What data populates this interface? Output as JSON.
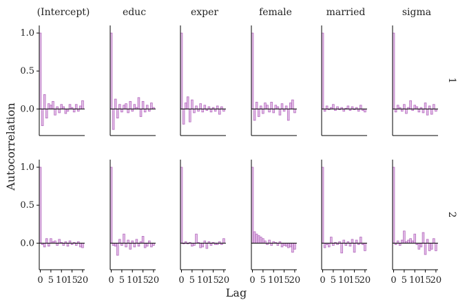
{
  "chart_data": {
    "type": "bar",
    "title": "",
    "xlabel": "Lag",
    "ylabel": "Autocorrelation",
    "xlim": [
      0,
      20
    ],
    "ylim": [
      -0.35,
      1.1
    ],
    "x_ticks": [
      0,
      5,
      10,
      15,
      20
    ],
    "x_tick_labels": [
      "0",
      "5",
      "10",
      "15",
      "20"
    ],
    "y_ticks": [
      1.0,
      0.5,
      0.0
    ],
    "y_tick_labels": [
      "1.0",
      "0.5",
      "0.0"
    ],
    "columns": [
      "(Intercept)",
      "educ",
      "exper",
      "female",
      "married",
      "sigma"
    ],
    "rows": [
      "1",
      "2"
    ],
    "panels": [
      {
        "parameter": "(Intercept)",
        "chain": "1",
        "lags": [
          0,
          1,
          2,
          3,
          4,
          5,
          6,
          7,
          8,
          9,
          10,
          11,
          12,
          13,
          14,
          15,
          16,
          17,
          18,
          19,
          20
        ],
        "values": [
          1.0,
          -0.22,
          0.19,
          -0.12,
          0.07,
          0.05,
          0.1,
          -0.08,
          0.03,
          -0.05,
          0.06,
          0.03,
          -0.06,
          -0.03,
          0.06,
          0.02,
          -0.04,
          0.06,
          -0.03,
          0.04,
          0.11
        ]
      },
      {
        "parameter": "educ",
        "chain": "1",
        "lags": [
          0,
          1,
          2,
          3,
          4,
          5,
          6,
          7,
          8,
          9,
          10,
          11,
          12,
          13,
          14,
          15,
          16,
          17,
          18,
          19,
          20
        ],
        "values": [
          1.0,
          -0.27,
          0.13,
          -0.12,
          0.06,
          -0.04,
          0.05,
          0.07,
          -0.05,
          0.1,
          -0.03,
          0.06,
          0.02,
          0.15,
          -0.1,
          0.1,
          -0.04,
          0.05,
          -0.03,
          0.08,
          0.02
        ]
      },
      {
        "parameter": "exper",
        "chain": "1",
        "lags": [
          0,
          1,
          2,
          3,
          4,
          5,
          6,
          7,
          8,
          9,
          10,
          11,
          12,
          13,
          14,
          15,
          16,
          17,
          18,
          19,
          20
        ],
        "values": [
          1.0,
          -0.2,
          0.08,
          0.16,
          -0.17,
          0.12,
          -0.05,
          0.04,
          -0.03,
          0.07,
          -0.04,
          0.05,
          -0.02,
          0.03,
          -0.04,
          0.02,
          -0.03,
          0.04,
          -0.07,
          0.03,
          -0.03
        ]
      },
      {
        "parameter": "female",
        "chain": "1",
        "lags": [
          0,
          1,
          2,
          3,
          4,
          5,
          6,
          7,
          8,
          9,
          10,
          11,
          12,
          13,
          14,
          15,
          16,
          17,
          18,
          19,
          20
        ],
        "values": [
          1.0,
          -0.15,
          0.09,
          -0.1,
          0.04,
          -0.06,
          0.08,
          0.05,
          -0.04,
          0.09,
          -0.05,
          0.05,
          0.03,
          -0.08,
          0.07,
          -0.03,
          0.04,
          -0.15,
          0.08,
          0.12,
          -0.05
        ]
      },
      {
        "parameter": "married",
        "chain": "1",
        "lags": [
          0,
          1,
          2,
          3,
          4,
          5,
          6,
          7,
          8,
          9,
          10,
          11,
          12,
          13,
          14,
          15,
          16,
          17,
          18,
          19,
          20
        ],
        "values": [
          1.0,
          -0.03,
          0.04,
          -0.01,
          0.02,
          0.06,
          -0.02,
          0.03,
          -0.01,
          0.02,
          -0.03,
          0.01,
          0.04,
          -0.02,
          0.03,
          -0.01,
          0.02,
          -0.03,
          0.05,
          -0.02,
          -0.04
        ]
      },
      {
        "parameter": "sigma",
        "chain": "1",
        "lags": [
          0,
          1,
          2,
          3,
          4,
          5,
          6,
          7,
          8,
          9,
          10,
          11,
          12,
          13,
          14,
          15,
          16,
          17,
          18,
          19,
          20
        ],
        "values": [
          1.0,
          -0.04,
          0.05,
          0.02,
          -0.03,
          0.06,
          -0.06,
          0.02,
          0.11,
          -0.02,
          0.05,
          0.03,
          -0.04,
          0.02,
          -0.05,
          0.08,
          -0.08,
          0.04,
          -0.07,
          0.06,
          -0.03
        ]
      },
      {
        "parameter": "(Intercept)",
        "chain": "2",
        "lags": [
          0,
          1,
          2,
          3,
          4,
          5,
          6,
          7,
          8,
          9,
          10,
          11,
          12,
          13,
          14,
          15,
          16,
          17,
          18,
          19,
          20
        ],
        "values": [
          1.0,
          -0.02,
          -0.05,
          0.06,
          -0.04,
          0.06,
          0.02,
          0.03,
          -0.03,
          0.05,
          0.01,
          -0.03,
          0.02,
          -0.04,
          0.03,
          -0.02,
          0.01,
          -0.03,
          0.02,
          -0.05,
          -0.06
        ]
      },
      {
        "parameter": "educ",
        "chain": "2",
        "lags": [
          0,
          1,
          2,
          3,
          4,
          5,
          6,
          7,
          8,
          9,
          10,
          11,
          12,
          13,
          14,
          15,
          16,
          17,
          18,
          19,
          20
        ],
        "values": [
          1.0,
          -0.03,
          -0.04,
          -0.16,
          0.05,
          -0.03,
          0.12,
          -0.05,
          0.04,
          -0.08,
          0.03,
          -0.05,
          0.05,
          -0.04,
          0.02,
          0.09,
          -0.06,
          -0.04,
          0.03,
          -0.05,
          -0.03
        ]
      },
      {
        "parameter": "exper",
        "chain": "2",
        "lags": [
          0,
          1,
          2,
          3,
          4,
          5,
          6,
          7,
          8,
          9,
          10,
          11,
          12,
          13,
          14,
          15,
          16,
          17,
          18,
          19,
          20
        ],
        "values": [
          1.0,
          -0.01,
          0.02,
          -0.01,
          0.01,
          -0.04,
          -0.03,
          0.12,
          0.01,
          -0.06,
          -0.05,
          0.03,
          -0.07,
          0.02,
          -0.03,
          0.01,
          -0.02,
          -0.02,
          0.02,
          -0.02,
          0.06
        ]
      },
      {
        "parameter": "female",
        "chain": "2",
        "lags": [
          0,
          1,
          2,
          3,
          4,
          5,
          6,
          7,
          8,
          9,
          10,
          11,
          12,
          13,
          14,
          15,
          16,
          17,
          18,
          19,
          20
        ],
        "values": [
          1.0,
          0.15,
          0.12,
          0.1,
          0.08,
          0.06,
          0.03,
          -0.02,
          0.04,
          -0.03,
          0.02,
          0.01,
          -0.03,
          0.02,
          -0.05,
          -0.03,
          -0.04,
          -0.06,
          -0.05,
          -0.12,
          -0.08
        ]
      },
      {
        "parameter": "married",
        "chain": "2",
        "lags": [
          0,
          1,
          2,
          3,
          4,
          5,
          6,
          7,
          8,
          9,
          10,
          11,
          12,
          13,
          14,
          15,
          16,
          17,
          18,
          19,
          20
        ],
        "values": [
          1.0,
          -0.06,
          -0.02,
          -0.05,
          0.08,
          -0.03,
          0.01,
          -0.02,
          0.02,
          -0.13,
          0.04,
          -0.03,
          0.02,
          -0.04,
          0.05,
          -0.12,
          0.04,
          -0.02,
          0.08,
          -0.02,
          -0.1
        ]
      },
      {
        "parameter": "sigma",
        "chain": "2",
        "lags": [
          0,
          1,
          2,
          3,
          4,
          5,
          6,
          7,
          8,
          9,
          10,
          11,
          12,
          13,
          14,
          15,
          16,
          17,
          18,
          19,
          20
        ],
        "values": [
          1.0,
          -0.02,
          0.03,
          -0.03,
          0.04,
          0.16,
          0.02,
          0.04,
          0.06,
          0.03,
          0.12,
          -0.02,
          -0.08,
          -0.05,
          0.14,
          -0.15,
          0.05,
          -0.1,
          -0.08,
          0.06,
          -0.1
        ]
      }
    ],
    "grid": false,
    "legend": "none",
    "colors": {
      "fill": "#e4bfe8",
      "stroke": "#b369bd",
      "axis": "#000000"
    }
  }
}
